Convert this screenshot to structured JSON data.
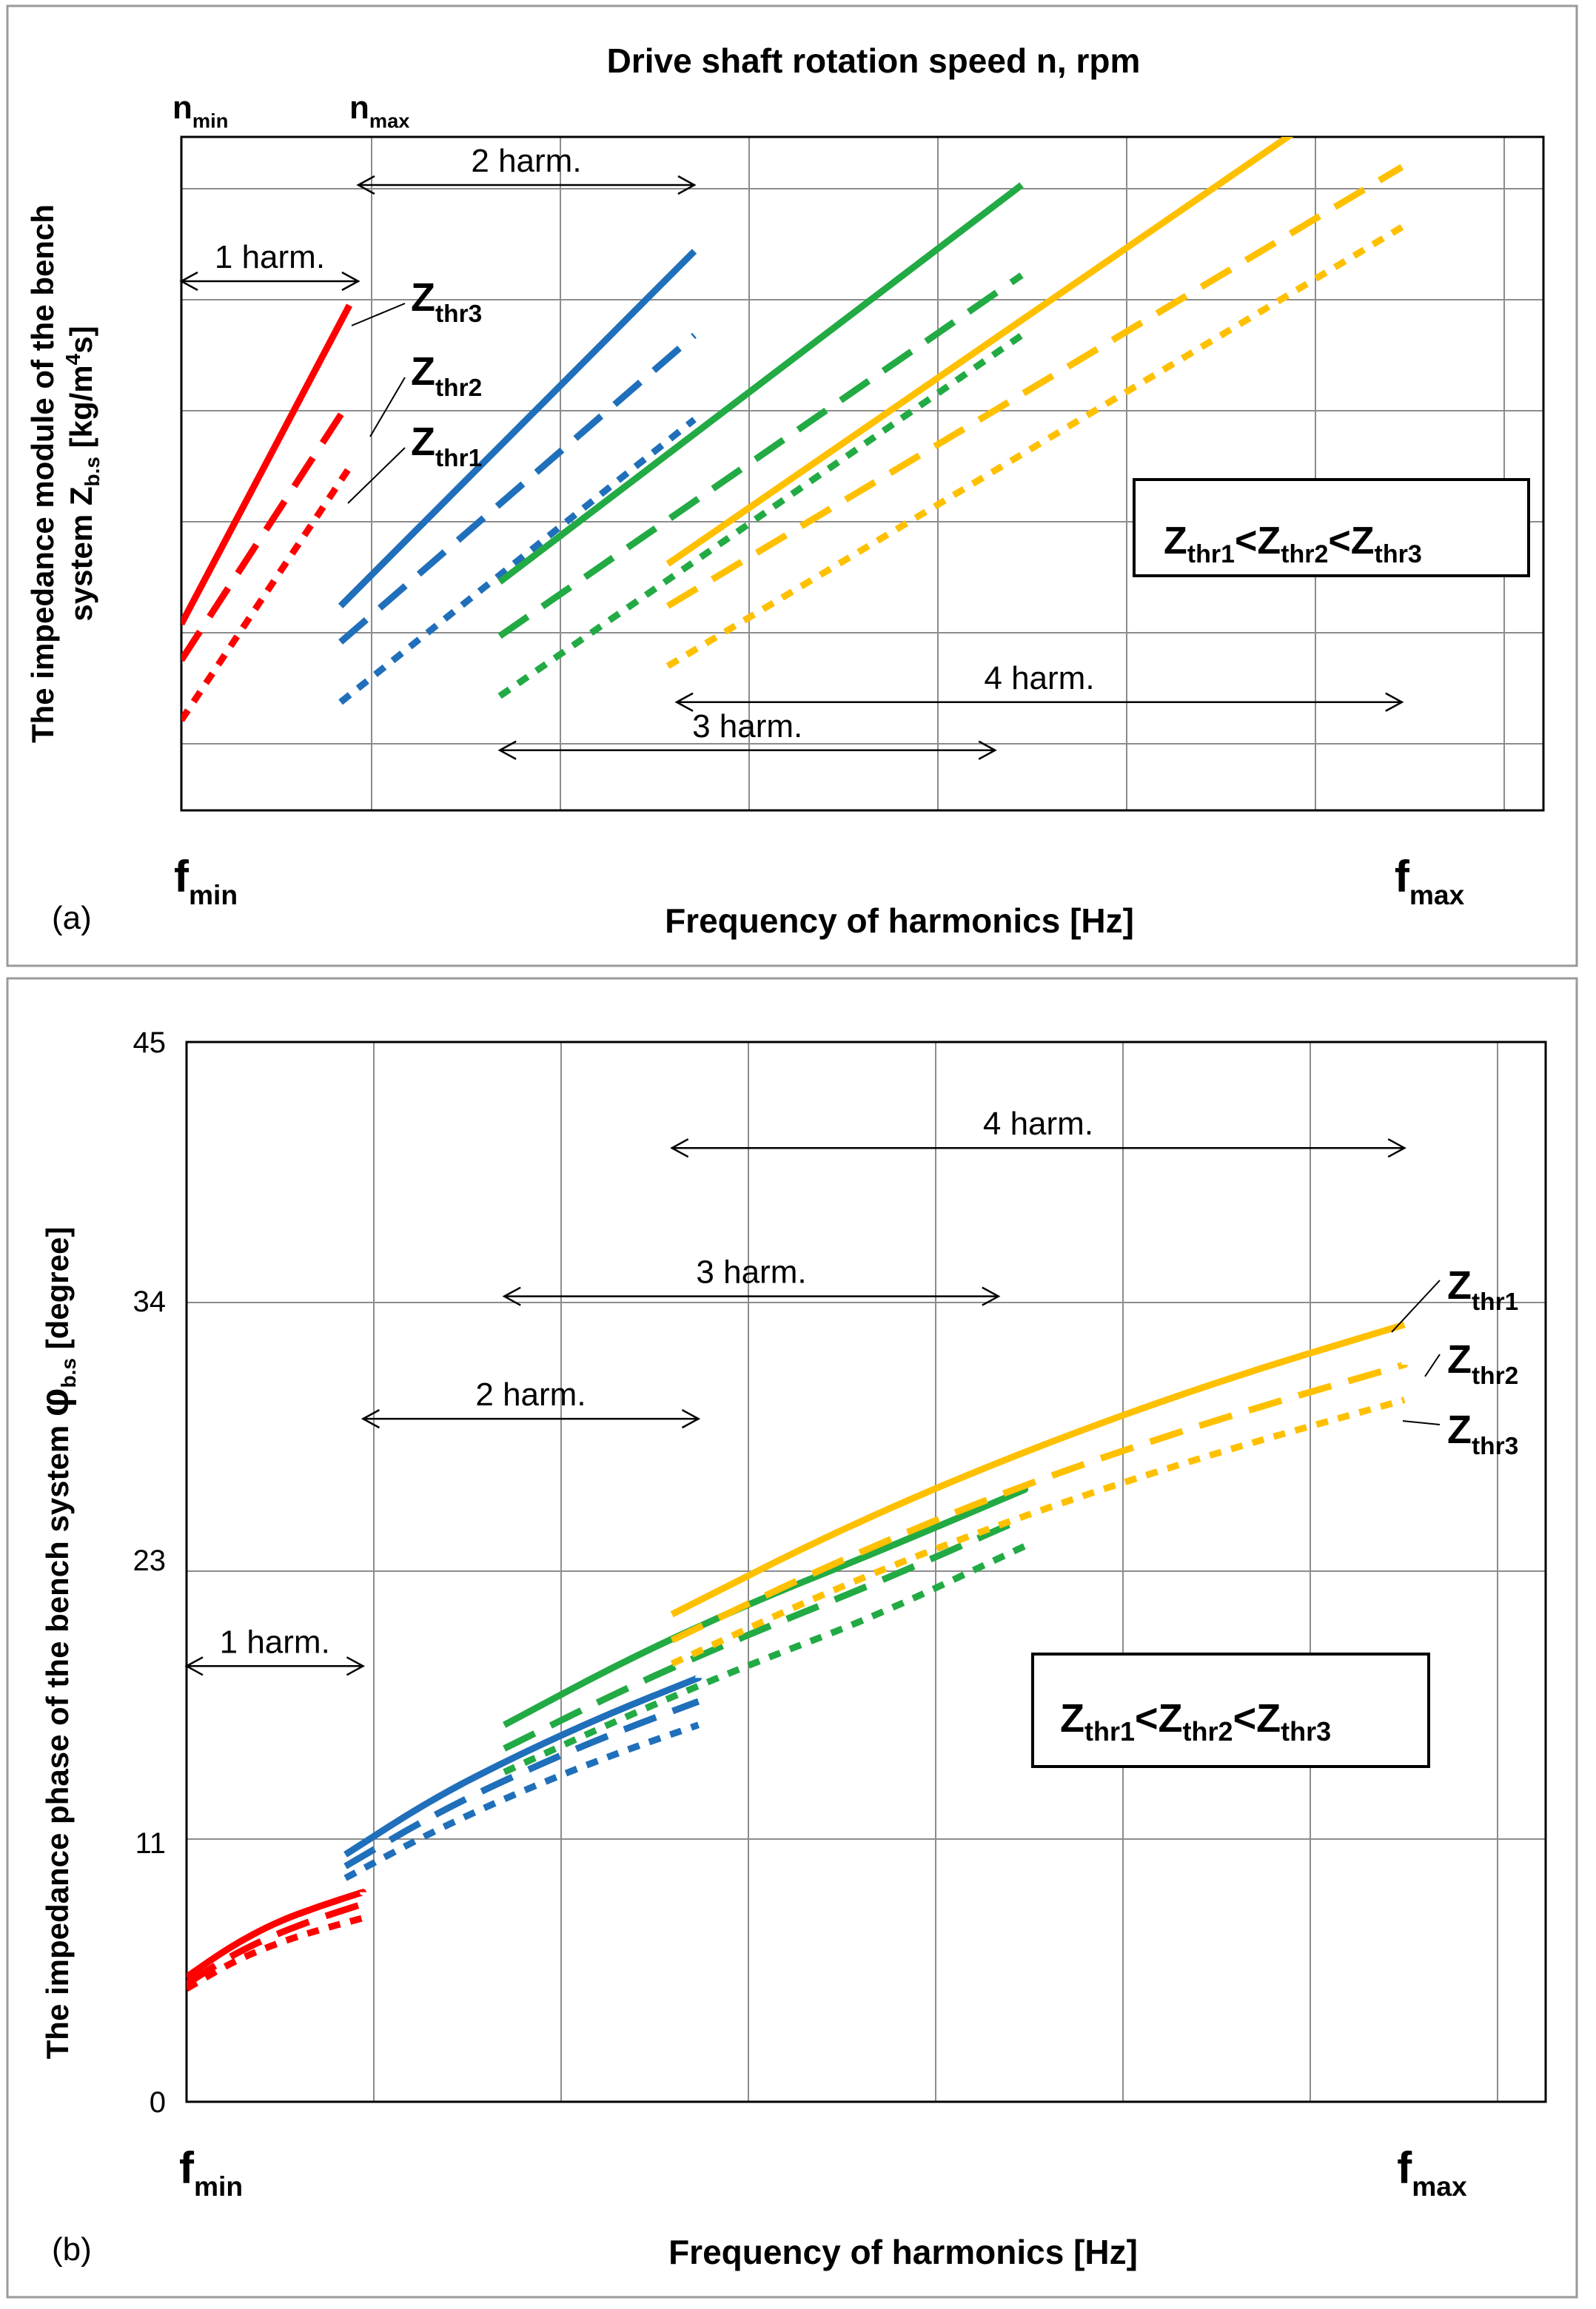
{
  "chart_data": [
    {
      "panel": "(a)",
      "type": "line",
      "title": "Drive shaft rotation speed n, rpm",
      "xlabel": "Frequency of harmonics [Hz]",
      "ylabel": "The impedance module of the bench system Z",
      "ylabel_sub": "b.s",
      "ylabel_unit_pre": " [kg/m",
      "ylabel_unit_sup": "4",
      "ylabel_unit_post": "s]",
      "xlim": [
        0,
        7.7
      ],
      "ylim": [
        0,
        5.6
      ],
      "grid": true,
      "x_tick_labels": [
        {
          "x": 0,
          "main": "f",
          "sub": "min"
        },
        {
          "x": 6.9,
          "main": "f",
          "sub": "max"
        }
      ],
      "top_labels": [
        {
          "x": 0,
          "main": "n",
          "sub": "min"
        },
        {
          "x": 1,
          "main": "n",
          "sub": "max"
        }
      ],
      "legend": {
        "text": "Zthr1<Zthr2<Zthr3",
        "parts": [
          "Z",
          "thr1",
          "<Z",
          "thr2",
          "<Z",
          "thr3"
        ]
      },
      "ranges": [
        {
          "label": "1 harm.",
          "x0": 0,
          "x1": 1,
          "y": 4.4
        },
        {
          "label": "2 harm.",
          "x0": 1,
          "x1": 2.9,
          "y": 5.2
        },
        {
          "label": "3 harm.",
          "x0": 1.8,
          "x1": 4.6,
          "y": 0.5
        },
        {
          "label": "4 harm.",
          "x0": 2.8,
          "x1": 6.9,
          "y": 0.9
        }
      ],
      "series_labels": [
        {
          "main": "Z",
          "sub": "thr3"
        },
        {
          "main": "Z",
          "sub": "thr2"
        },
        {
          "main": "Z",
          "sub": "thr1"
        }
      ],
      "series": [
        {
          "name": "1 harm. Zthr3",
          "color": "#ff0000",
          "style": "solid",
          "x": [
            0,
            0.95
          ],
          "y": [
            1.55,
            4.2
          ]
        },
        {
          "name": "1 harm. Zthr2",
          "color": "#ff0000",
          "style": "long-dash",
          "x": [
            0,
            0.95
          ],
          "y": [
            1.25,
            3.4
          ]
        },
        {
          "name": "1 harm. Zthr1",
          "color": "#ff0000",
          "style": "short-dash",
          "x": [
            0,
            0.95
          ],
          "y": [
            0.75,
            2.85
          ]
        },
        {
          "name": "2 harm. Zthr3",
          "color": "#1f6fba",
          "style": "solid",
          "x": [
            0.9,
            2.9
          ],
          "y": [
            1.7,
            4.65
          ]
        },
        {
          "name": "2 harm. Zthr2",
          "color": "#1f6fba",
          "style": "long-dash",
          "x": [
            0.9,
            2.9
          ],
          "y": [
            1.4,
            3.95
          ]
        },
        {
          "name": "2 harm. Zthr1",
          "color": "#1f6fba",
          "style": "short-dash",
          "x": [
            0.9,
            2.9
          ],
          "y": [
            0.9,
            3.25
          ]
        },
        {
          "name": "3 harm. Zthr3",
          "color": "#22aa44",
          "style": "solid",
          "x": [
            1.8,
            4.75
          ],
          "y": [
            1.9,
            5.2
          ]
        },
        {
          "name": "3 harm. Zthr2",
          "color": "#22aa44",
          "style": "long-dash",
          "x": [
            1.8,
            4.75
          ],
          "y": [
            1.45,
            4.45
          ]
        },
        {
          "name": "3 harm. Zthr1",
          "color": "#22aa44",
          "style": "short-dash",
          "x": [
            1.8,
            4.75
          ],
          "y": [
            0.95,
            3.95
          ]
        },
        {
          "name": "4 harm. Zthr3",
          "color": "#ffc000",
          "style": "solid",
          "x": [
            2.75,
            6.55
          ],
          "y": [
            2.05,
            5.9
          ]
        },
        {
          "name": "4 harm. Zthr2",
          "color": "#ffc000",
          "style": "long-dash",
          "x": [
            2.75,
            6.9
          ],
          "y": [
            1.7,
            5.35
          ]
        },
        {
          "name": "4 harm. Zthr1",
          "color": "#ffc000",
          "style": "short-dash",
          "x": [
            2.75,
            6.9
          ],
          "y": [
            1.2,
            4.85
          ]
        }
      ]
    },
    {
      "panel": "(b)",
      "type": "line",
      "title": "",
      "xlabel": "Frequency of harmonics [Hz]",
      "ylabel": "The impedance phase of the bench system",
      "ylabel_symbol": "φ",
      "ylabel_sub": "b.s",
      "ylabel_unit": "[degree]",
      "xlim": [
        0,
        7.7
      ],
      "ylim": [
        0,
        45
      ],
      "yticks": [
        0,
        11,
        23,
        34,
        45
      ],
      "grid": true,
      "x_tick_labels": [
        {
          "x": 0,
          "main": "f",
          "sub": "min"
        },
        {
          "x": 6.9,
          "main": "f",
          "sub": "max"
        }
      ],
      "legend": {
        "text": "Zthr1<Zthr2<Zthr3",
        "parts": [
          "Z",
          "thr1",
          "<Z",
          "thr2",
          "<Z",
          "thr3"
        ]
      },
      "ranges": [
        {
          "label": "1 harm.",
          "x0": 0,
          "x1": 1,
          "y": 18.5
        },
        {
          "label": "2 harm.",
          "x0": 1,
          "x1": 2.9,
          "y": 29
        },
        {
          "label": "3 harm.",
          "x0": 1.8,
          "x1": 4.6,
          "y": 34.2
        },
        {
          "label": "4 harm.",
          "x0": 2.75,
          "x1": 6.9,
          "y": 40.5
        }
      ],
      "series_labels": [
        {
          "main": "Z",
          "sub": "thr1"
        },
        {
          "main": "Z",
          "sub": "thr2"
        },
        {
          "main": "Z",
          "sub": "thr3"
        }
      ],
      "series": [
        {
          "name": "1 harm. Zthr1",
          "color": "#ff0000",
          "style": "solid",
          "x": [
            0,
            0.25,
            0.5,
            0.75,
            1.0
          ],
          "y": [
            5.3,
            6.6,
            7.6,
            8.3,
            8.9
          ]
        },
        {
          "name": "1 harm. Zthr2",
          "color": "#ff0000",
          "style": "long-dash",
          "x": [
            0,
            0.25,
            0.5,
            0.75,
            1.0
          ],
          "y": [
            5.0,
            6.2,
            7.1,
            7.8,
            8.4
          ]
        },
        {
          "name": "1 harm. Zthr3",
          "color": "#ff0000",
          "style": "short-dash",
          "x": [
            0,
            0.25,
            0.5,
            0.75,
            1.0
          ],
          "y": [
            4.8,
            5.9,
            6.7,
            7.3,
            7.8
          ]
        },
        {
          "name": "2 harm. Zthr1",
          "color": "#1f6fba",
          "style": "solid",
          "x": [
            0.9,
            1.4,
            1.9,
            2.4,
            2.9
          ],
          "y": [
            10.5,
            12.9,
            14.8,
            16.5,
            18.0
          ]
        },
        {
          "name": "2 harm. Zthr2",
          "color": "#1f6fba",
          "style": "long-dash",
          "x": [
            0.9,
            1.4,
            1.9,
            2.4,
            2.9
          ],
          "y": [
            10.0,
            12.2,
            14.0,
            15.6,
            17.0
          ]
        },
        {
          "name": "2 harm. Zthr3",
          "color": "#1f6fba",
          "style": "short-dash",
          "x": [
            0.9,
            1.4,
            1.9,
            2.4,
            2.9
          ],
          "y": [
            9.5,
            11.5,
            13.2,
            14.7,
            16.0
          ]
        },
        {
          "name": "3 harm. Zthr1",
          "color": "#22aa44",
          "style": "solid",
          "x": [
            1.8,
            2.5,
            3.2,
            3.9,
            4.75
          ],
          "y": [
            16.0,
            18.8,
            21.2,
            23.3,
            26.0
          ]
        },
        {
          "name": "3 harm. Zthr2",
          "color": "#22aa44",
          "style": "long-dash",
          "x": [
            1.8,
            2.5,
            3.2,
            3.9,
            4.75
          ],
          "y": [
            15.0,
            17.6,
            19.9,
            22.0,
            24.8
          ]
        },
        {
          "name": "3 harm. Zthr3",
          "color": "#22aa44",
          "style": "short-dash",
          "x": [
            1.8,
            2.5,
            3.2,
            3.9,
            4.75
          ],
          "y": [
            14.0,
            16.4,
            18.6,
            20.6,
            23.6
          ]
        },
        {
          "name": "4 harm. Zthr1",
          "color": "#ffc000",
          "style": "solid",
          "x": [
            2.75,
            3.7,
            4.7,
            5.8,
            6.9
          ],
          "y": [
            20.7,
            24.3,
            27.5,
            30.5,
            33.0
          ]
        },
        {
          "name": "4 harm. Zthr2",
          "color": "#ffc000",
          "style": "long-dash",
          "x": [
            2.75,
            3.7,
            4.7,
            5.8,
            6.9
          ],
          "y": [
            19.6,
            23.0,
            26.1,
            28.9,
            31.3
          ]
        },
        {
          "name": "4 harm. Zthr3",
          "color": "#ffc000",
          "style": "short-dash",
          "x": [
            2.75,
            3.7,
            4.7,
            5.8,
            6.9
          ],
          "y": [
            18.6,
            21.9,
            24.8,
            27.5,
            29.8
          ]
        }
      ]
    }
  ]
}
